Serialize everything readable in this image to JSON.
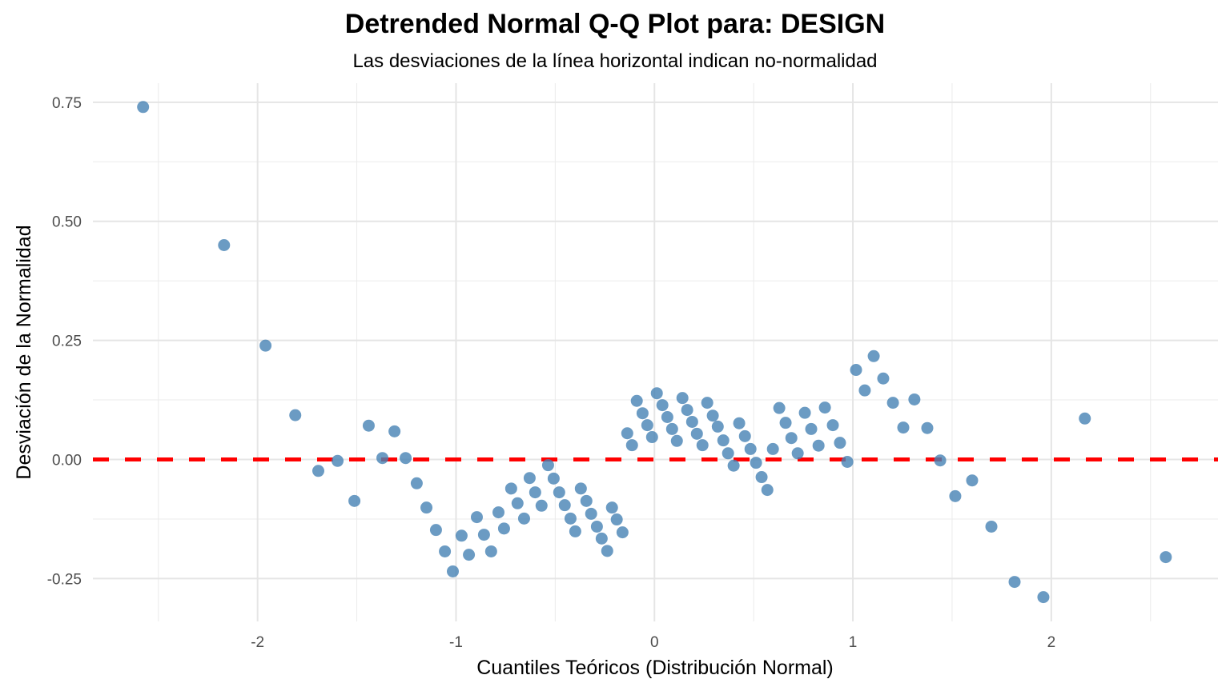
{
  "chart_data": {
    "type": "scatter",
    "title": "Detrended Normal Q-Q Plot para: DESIGN",
    "subtitle": "Las desviaciones de la línea horizontal indican no-normalidad",
    "xlabel": "Cuantiles Teóricos (Distribución Normal)",
    "ylabel": "Desviación de la Normalidad",
    "xlim": [
      -2.83,
      2.84
    ],
    "ylim": [
      -0.34,
      0.79
    ],
    "x_ticks": [
      -2,
      -1,
      0,
      1,
      2
    ],
    "x_tick_labels": [
      "-2",
      "-1",
      "0",
      "1",
      "2"
    ],
    "y_ticks": [
      -0.25,
      0,
      0.25,
      0.5,
      0.75
    ],
    "y_tick_labels": [
      "-0.25",
      "0.00",
      "0.25",
      "0.50",
      "0.75"
    ],
    "grid": true,
    "reference_line": {
      "y": 0,
      "style": "dashed",
      "color": "#ff0000"
    },
    "point_color": "#4682b4",
    "point_alpha": 0.8,
    "points": [
      [
        -2.577,
        0.74
      ],
      [
        -2.169,
        0.45
      ],
      [
        -1.96,
        0.239
      ],
      [
        -1.81,
        0.093
      ],
      [
        -1.694,
        -0.024
      ],
      [
        -1.597,
        -0.003
      ],
      [
        -1.512,
        -0.087
      ],
      [
        -1.44,
        0.071
      ],
      [
        -1.371,
        0.003
      ],
      [
        -1.31,
        0.059
      ],
      [
        -1.254,
        0.003
      ],
      [
        -1.198,
        -0.05
      ],
      [
        -1.149,
        -0.101
      ],
      [
        -1.101,
        -0.148
      ],
      [
        -1.056,
        -0.193
      ],
      [
        -1.016,
        -0.235
      ],
      [
        -0.972,
        -0.16
      ],
      [
        -0.935,
        -0.2
      ],
      [
        -0.895,
        -0.121
      ],
      [
        -0.859,
        -0.158
      ],
      [
        -0.823,
        -0.193
      ],
      [
        -0.786,
        -0.111
      ],
      [
        -0.758,
        -0.145
      ],
      [
        -0.722,
        -0.061
      ],
      [
        -0.69,
        -0.092
      ],
      [
        -0.657,
        -0.124
      ],
      [
        -0.629,
        -0.039
      ],
      [
        -0.601,
        -0.069
      ],
      [
        -0.569,
        -0.097
      ],
      [
        -0.536,
        -0.012
      ],
      [
        -0.508,
        -0.04
      ],
      [
        -0.48,
        -0.069
      ],
      [
        -0.452,
        -0.096
      ],
      [
        -0.423,
        -0.124
      ],
      [
        -0.399,
        -0.151
      ],
      [
        -0.371,
        -0.061
      ],
      [
        -0.343,
        -0.087
      ],
      [
        -0.319,
        -0.114
      ],
      [
        -0.29,
        -0.141
      ],
      [
        -0.266,
        -0.166
      ],
      [
        -0.238,
        -0.192
      ],
      [
        -0.214,
        -0.101
      ],
      [
        -0.19,
        -0.126
      ],
      [
        -0.161,
        -0.153
      ],
      [
        -0.137,
        0.055
      ],
      [
        -0.113,
        0.03
      ],
      [
        -0.089,
        0.123
      ],
      [
        -0.06,
        0.097
      ],
      [
        -0.036,
        0.072
      ],
      [
        -0.012,
        0.047
      ],
      [
        0.012,
        0.139
      ],
      [
        0.04,
        0.114
      ],
      [
        0.065,
        0.089
      ],
      [
        0.089,
        0.064
      ],
      [
        0.113,
        0.039
      ],
      [
        0.141,
        0.129
      ],
      [
        0.165,
        0.104
      ],
      [
        0.19,
        0.079
      ],
      [
        0.214,
        0.054
      ],
      [
        0.242,
        0.03
      ],
      [
        0.266,
        0.119
      ],
      [
        0.294,
        0.092
      ],
      [
        0.319,
        0.069
      ],
      [
        0.347,
        0.04
      ],
      [
        0.371,
        0.013
      ],
      [
        0.399,
        -0.013
      ],
      [
        0.427,
        0.076
      ],
      [
        0.456,
        0.049
      ],
      [
        0.484,
        0.022
      ],
      [
        0.512,
        -0.007
      ],
      [
        0.54,
        -0.037
      ],
      [
        0.569,
        -0.064
      ],
      [
        0.597,
        0.022
      ],
      [
        0.629,
        0.108
      ],
      [
        0.661,
        0.077
      ],
      [
        0.69,
        0.045
      ],
      [
        0.722,
        0.013
      ],
      [
        0.758,
        0.098
      ],
      [
        0.79,
        0.064
      ],
      [
        0.827,
        0.029
      ],
      [
        0.859,
        0.109
      ],
      [
        0.899,
        0.072
      ],
      [
        0.935,
        0.035
      ],
      [
        0.972,
        -0.005
      ],
      [
        1.016,
        0.188
      ],
      [
        1.06,
        0.145
      ],
      [
        1.105,
        0.217
      ],
      [
        1.153,
        0.17
      ],
      [
        1.202,
        0.119
      ],
      [
        1.254,
        0.067
      ],
      [
        1.31,
        0.126
      ],
      [
        1.375,
        0.066
      ],
      [
        1.44,
        -0.002
      ],
      [
        1.516,
        -0.077
      ],
      [
        1.601,
        -0.044
      ],
      [
        1.698,
        -0.141
      ],
      [
        1.815,
        -0.257
      ],
      [
        1.96,
        -0.289
      ],
      [
        2.169,
        0.086
      ],
      [
        2.577,
        -0.205
      ]
    ]
  }
}
